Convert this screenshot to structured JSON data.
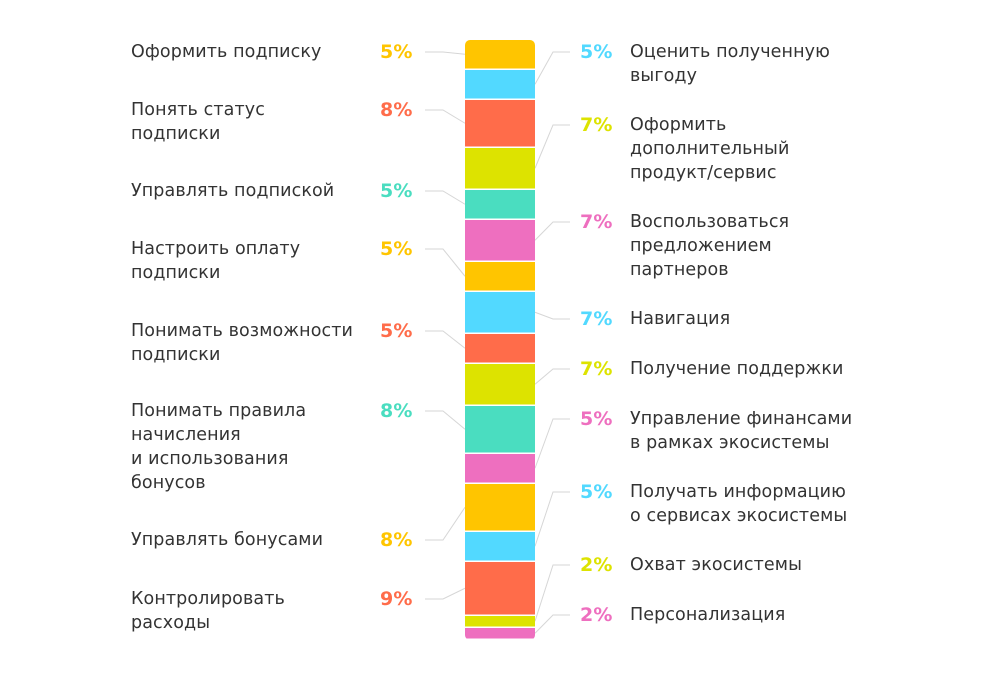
{
  "chart_data": {
    "type": "bar",
    "stacked": true,
    "orientation": "vertical",
    "left_series": [
      {
        "name": "Оформить подписку",
        "value": 5,
        "label": "5%",
        "color": "#FFC500"
      },
      {
        "name": "Понять статус\nподписки",
        "value": 8,
        "label": "8%",
        "color": "#FF6C4A"
      },
      {
        "name": "Управлять подпиской",
        "value": 5,
        "label": "5%",
        "color": "#4ADDC0"
      },
      {
        "name": "Настроить оплату\nподписки",
        "value": 5,
        "label": "5%",
        "color": "#FFC500"
      },
      {
        "name": "Понимать возможности\nподписки",
        "value": 5,
        "label": "5%",
        "color": "#FF6C4A"
      },
      {
        "name": "Понимать правила\nначисления\nи использования\nбонусов",
        "value": 8,
        "label": "8%",
        "color": "#4ADDC0"
      },
      {
        "name": "Управлять бонусами",
        "value": 8,
        "label": "8%",
        "color": "#FFC500"
      },
      {
        "name": "Контролировать\nрасходы",
        "value": 9,
        "label": "9%",
        "color": "#FF6C4A"
      }
    ],
    "right_series": [
      {
        "name": "Оценить полученную\nвыгоду",
        "value": 5,
        "label": "5%",
        "color": "#52D9FF"
      },
      {
        "name": "Оформить\nдополнительный\nпродукт/сервис",
        "value": 7,
        "label": "7%",
        "color": "#DDE300"
      },
      {
        "name": "Воспользоваться\nпредложением\nпартнеров",
        "value": 7,
        "label": "7%",
        "color": "#EE6FBF"
      },
      {
        "name": "Навигация",
        "value": 7,
        "label": "7%",
        "color": "#52D9FF"
      },
      {
        "name": "Получение поддержки",
        "value": 7,
        "label": "7%",
        "color": "#DDE300"
      },
      {
        "name": "Управление финансами\nв рамках экосистемы",
        "value": 5,
        "label": "5%",
        "color": "#EE6FBF"
      },
      {
        "name": "Получать информацию\nо сервисах экосистемы",
        "value": 5,
        "label": "5%",
        "color": "#52D9FF"
      },
      {
        "name": "Охват экосистемы",
        "value": 2,
        "label": "2%",
        "color": "#DDE300"
      },
      {
        "name": "Персонализация",
        "value": 2,
        "label": "2%",
        "color": "#EE6FBF"
      }
    ],
    "stack_order": [
      {
        "side": "left",
        "index": 0
      },
      {
        "side": "right",
        "index": 0
      },
      {
        "side": "left",
        "index": 1
      },
      {
        "side": "right",
        "index": 1
      },
      {
        "side": "left",
        "index": 2
      },
      {
        "side": "right",
        "index": 2
      },
      {
        "side": "left",
        "index": 3
      },
      {
        "side": "right",
        "index": 3
      },
      {
        "side": "left",
        "index": 4
      },
      {
        "side": "right",
        "index": 4
      },
      {
        "side": "left",
        "index": 5
      },
      {
        "side": "right",
        "index": 5
      },
      {
        "side": "left",
        "index": 6
      },
      {
        "side": "right",
        "index": 6
      },
      {
        "side": "left",
        "index": 7
      },
      {
        "side": "right",
        "index": 7
      },
      {
        "side": "right",
        "index": 8
      }
    ],
    "title": "",
    "xlabel": "",
    "ylabel": "",
    "legend": "none",
    "grid": false
  }
}
